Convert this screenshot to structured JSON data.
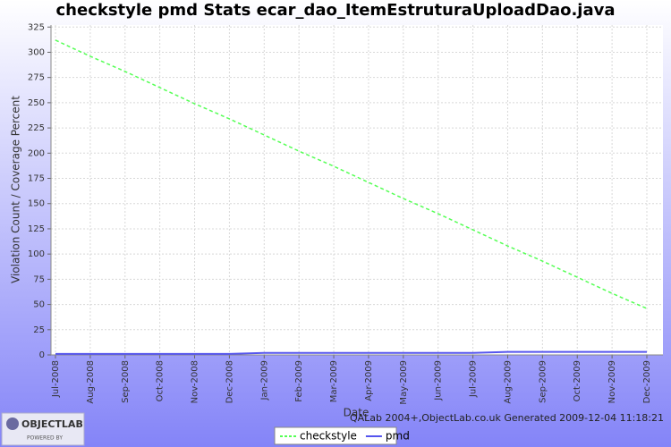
{
  "chart_data": {
    "type": "line",
    "title": "checkstyle pmd  Stats ecar_dao_ItemEstruturaUploadDao.java",
    "xlabel": "Date",
    "ylabel": "Violation Count / Coverage Percent",
    "footer": "QALab 2004+,ObjectLab.co.uk Generated 2009-12-04 11:18:21",
    "logo": {
      "name": "OBJECTLAB",
      "tagline": "POWERED BY"
    },
    "x": [
      "Jul-2008",
      "Aug-2008",
      "Sep-2008",
      "Oct-2008",
      "Nov-2008",
      "Dec-2008",
      "Jan-2009",
      "Feb-2009",
      "Mar-2009",
      "Apr-2009",
      "May-2009",
      "Jun-2009",
      "Jul-2009",
      "Aug-2009",
      "Sep-2009",
      "Oct-2009",
      "Nov-2009",
      "Dec-2009"
    ],
    "series": [
      {
        "name": "checkstyle",
        "color": "#55ff55",
        "dashed": true,
        "values": [
          312,
          296,
          281,
          265,
          249,
          234,
          218,
          202,
          187,
          171,
          155,
          140,
          124,
          108,
          93,
          77,
          61,
          46
        ]
      },
      {
        "name": "pmd",
        "color": "#5555ee",
        "dashed": false,
        "values": [
          1,
          1,
          1,
          1,
          1,
          1,
          2,
          2,
          2,
          2,
          2,
          2,
          2,
          3,
          3,
          3,
          3,
          3
        ]
      }
    ],
    "ylim": [
      0,
      327
    ],
    "yticks": [
      0,
      25,
      50,
      75,
      100,
      125,
      150,
      175,
      200,
      225,
      250,
      275,
      300,
      325
    ],
    "grid": true,
    "legend": "bottom"
  }
}
